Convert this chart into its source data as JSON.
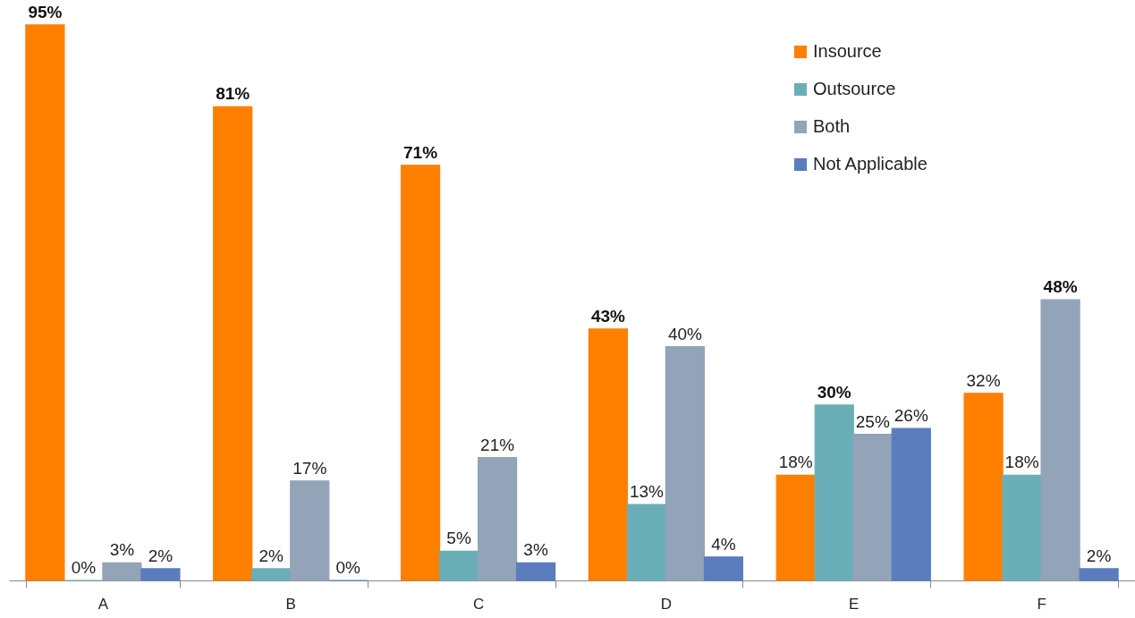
{
  "chart_data": {
    "type": "bar",
    "categories": [
      "A",
      "B",
      "C",
      "D",
      "E",
      "F"
    ],
    "legend": "top right",
    "series": [
      {
        "name": "Insource",
        "color": "#ff7f00",
        "values": [
          95,
          81,
          71,
          43,
          18,
          32
        ],
        "value_labels": [
          "95%",
          "81%",
          "71%",
          "43%",
          "18%",
          "32%"
        ]
      },
      {
        "name": "Outsource",
        "color": "#6aafb8",
        "values": [
          0,
          2,
          5,
          13,
          30,
          18
        ],
        "value_labels": [
          "0%",
          "2%",
          "5%",
          "13%",
          "30%",
          "18%"
        ]
      },
      {
        "name": "Both",
        "color": "#93a3b8",
        "values": [
          3,
          17,
          21,
          40,
          25,
          48
        ],
        "value_labels": [
          "3%",
          "17%",
          "21%",
          "40%",
          "25%",
          "48%"
        ]
      },
      {
        "name": "Not Applicable",
        "color": "#5b7dbd",
        "values": [
          2,
          0,
          3,
          4,
          26,
          2
        ],
        "value_labels": [
          "2%",
          "0%",
          "3%",
          "4%",
          "26%",
          "2%"
        ]
      }
    ]
  }
}
